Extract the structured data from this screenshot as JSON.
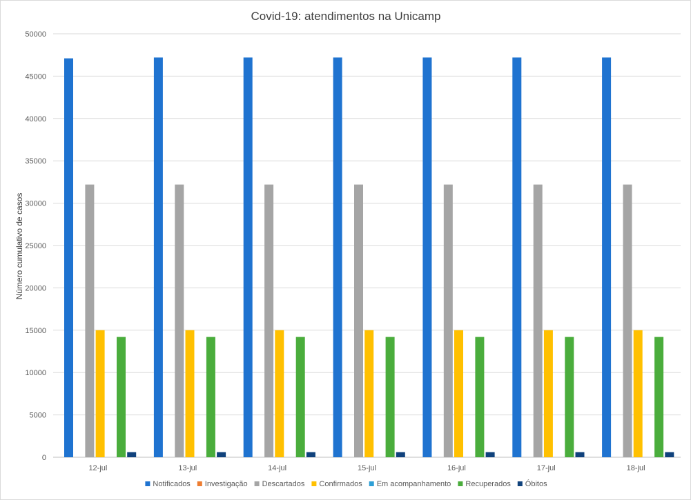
{
  "chart_data": {
    "type": "bar",
    "title": "Covid-19: atendimentos na Unicamp",
    "xlabel": "",
    "ylabel": "Número cumulativo de casos",
    "ylim": [
      0,
      50000
    ],
    "yticks": [
      0,
      5000,
      10000,
      15000,
      20000,
      25000,
      30000,
      35000,
      40000,
      45000,
      50000
    ],
    "grid": true,
    "legend_position": "bottom",
    "categories": [
      "12-jul",
      "13-jul",
      "14-jul",
      "15-jul",
      "16-jul",
      "17-jul",
      "18-jul"
    ],
    "series": [
      {
        "name": "Notificados",
        "color": "#1f73d0",
        "values": [
          47100,
          47200,
          47200,
          47200,
          47200,
          47200,
          47200
        ]
      },
      {
        "name": "Investigação",
        "color": "#ed7d31",
        "values": [
          0,
          0,
          0,
          0,
          0,
          0,
          0
        ]
      },
      {
        "name": "Descartados",
        "color": "#a5a5a5",
        "values": [
          32200,
          32200,
          32200,
          32200,
          32200,
          32200,
          32200
        ]
      },
      {
        "name": "Confirmados",
        "color": "#ffc000",
        "values": [
          15000,
          15000,
          15000,
          15000,
          15000,
          15000,
          15000
        ]
      },
      {
        "name": "Em acompanhamento",
        "color": "#2e9fd6",
        "values": [
          0,
          0,
          0,
          0,
          0,
          0,
          0
        ]
      },
      {
        "name": "Recuperados",
        "color": "#4aad3c",
        "values": [
          14200,
          14200,
          14200,
          14200,
          14200,
          14200,
          14200
        ]
      },
      {
        "name": "Óbitos",
        "color": "#10427c",
        "values": [
          600,
          600,
          600,
          600,
          600,
          600,
          600
        ]
      }
    ]
  }
}
